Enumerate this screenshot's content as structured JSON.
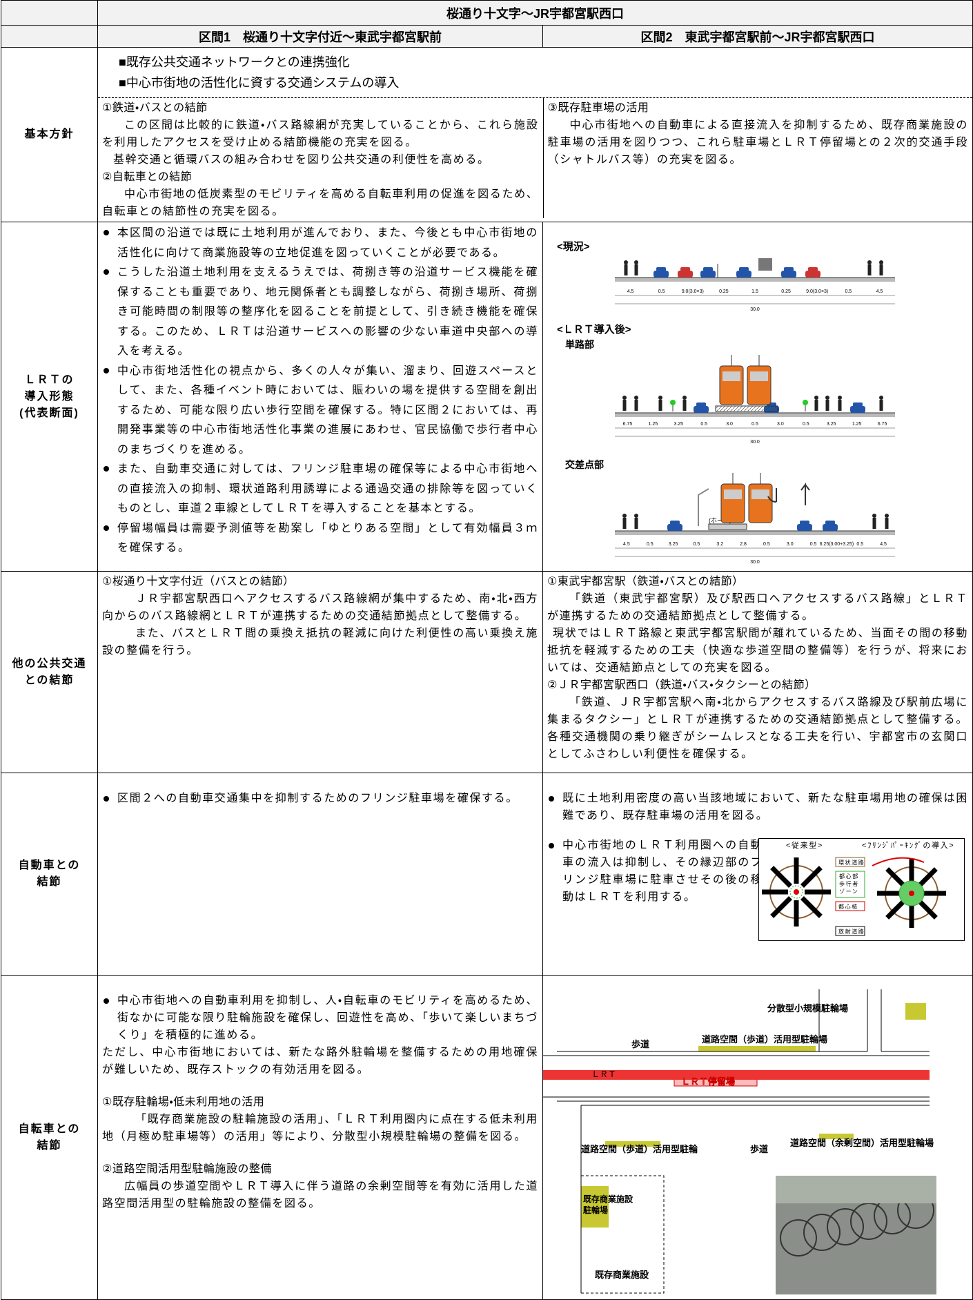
{
  "header": {
    "title": "桜通り十文字～JR宇都宮駅西口",
    "section1": "区間1　桜通り十文字付近～東武宇都宮駅前",
    "section2": "区間2　東武宇都宮駅前～JR宇都宮駅西口"
  },
  "basic_policy": {
    "label": "基本方針",
    "headings": [
      "■既存公共交通ネットワークとの連携強化",
      "■中心市街地の活性化に資する交通システムの導入"
    ],
    "section1": [
      {
        "title": "①鉄道・バスとの結節",
        "paragraphs": [
          "この区間は比較的に鉄道・バス路線網が充実していることから、これら施設を利用したアクセスを受け止める結節機能の充実を図る。",
          "基幹交通と循環バスの組み合わせを図り公共交通の利便性を高める。"
        ]
      },
      {
        "title": "②自転車との結節",
        "paragraphs": [
          "中心市街地の低炭素型のモビリティを高める自転車利用の促進を図るため、自転車との結節性の充実を図る。"
        ]
      }
    ],
    "section2": [
      {
        "title": "③既存駐車場の活用",
        "paragraphs": [
          "中心市街地への自動車による直接流入を抑制するため、既存商業施設の駐車場の活用を図りつつ、これら駐車場とＬＲＴ停留場との２次的交通手段（シャトルバス等）の充実を図る。"
        ]
      }
    ]
  },
  "lrt_form": {
    "label": [
      "ＬＲＴの",
      "導入形態",
      "(代表断面)"
    ],
    "bullets": [
      "本区間の沿道では既に土地利用が進んでおり、また、今後とも中心市街地の活性化に向けて商業施設等の立地促進を図っていくことが必要である。",
      "こうした沿道土地利用を支えるうえでは、荷捌き等の沿道サービス機能を確保することも重要であり、地元関係者とも調整しながら、荷捌き場所、荷捌き可能時間の制限等の整序化を図ることを前提として、引き続き機能を確保する。このため、ＬＲＴは沿道サービスへの影響の少ない車道中央部への導入を考える。",
      "中心市街地活性化の視点から、多くの人々が集い、溜まり、回遊スペースとして、また、各種イベント時においては、賑わいの場を提供する空間を創出するため、可能な限り広い歩行空間を確保する。特に区間２においては、再開発事業等の中心市街地活性化事業の進展にあわせ、官民協働で歩行者中心のまちづくりを進める。",
      "また、自動車交通に対しては、フリンジ駐車場の確保等による中心市街地への直接流入の抑制、環状道路利用誘導による通過交通の排除等を図っていくものとし、車道２車線としてＬＲＴを導入することを基本とする。",
      "停留場幅員は需要予測値等を勘案し「ゆとりある空間」として有効幅員３ｍを確保する。"
    ],
    "diagram": {
      "current": "<現況>",
      "after": "<ＬＲＴ導入後>",
      "midblock": "単路部",
      "intersection": "交差点部",
      "platform": "(ホーム)",
      "sections": [
        {
          "dims": [
            "4.5",
            "0.5",
            "9.0(3.0×3)",
            "0.25",
            "1.5",
            "0.25",
            "9.0(3.0×3)",
            "0.5",
            "4.5"
          ],
          "total": "30.0"
        },
        {
          "dims": [
            "6.75",
            "1.25",
            "3.25",
            "0.5",
            "3.0",
            "0.5",
            "3.0",
            "0.5",
            "3.25",
            "1.25",
            "6.75"
          ],
          "total": "30.0"
        },
        {
          "dims": [
            "4.5",
            "0.5",
            "3.25",
            "0.5",
            "3.2",
            "2.8",
            "0.5",
            "3.0",
            "0.5",
            "6.25(3.00+3.25)",
            "0.5",
            "4.5"
          ],
          "total": "30.0"
        }
      ]
    }
  },
  "public_transport": {
    "label": [
      "他の公共交通",
      "との結節"
    ],
    "section1": [
      {
        "title": "①桜通り十文字付近（バスとの結節）",
        "paragraphs": [
          "ＪＲ宇都宮駅西口へアクセスするバス路線網が集中するため、南・北・西方向からのバス路線網とＬＲＴが連携するための交通結節拠点として整備する。",
          "また、バスとＬＲＴ間の乗換え抵抗の軽減に向けた利便性の高い乗換え施設の整備を行う。"
        ]
      }
    ],
    "section2": [
      {
        "title": "①東武宇都宮駅（鉄道・バスとの結節）",
        "paragraphs": [
          "「鉄道（東武宇都宮駅）及び駅西口へアクセスするバス路線」とＬＲＴが連携するための交通結節拠点として整備する。",
          "現状ではＬＲＴ路線と東武宇都宮駅間が離れているため、当面その間の移動抵抗を軽減するための工夫（快適な歩道空間の整備等）を行うが、将来においては、交通結節点としての充実を図る。"
        ]
      },
      {
        "title": "②ＪＲ宇都宮駅西口（鉄道・バス・タクシーとの結節）",
        "paragraphs": [
          "「鉄道、ＪＲ宇都宮駅へ南・北からアクセスするバス路線及び駅前広場に集まるタクシー」とＬＲＴが連携するための交通結節拠点として整備する。各種交通機関の乗り継ぎがシームレスとなる工夫を行い、宇都宮市の玄関口としてふさわしい利便性を確保する。"
        ]
      }
    ]
  },
  "car": {
    "label": [
      "自動車との",
      "結節"
    ],
    "section1": [
      "区間２への自動車交通集中を抑制するためのフリンジ駐車場を確保する。"
    ],
    "section2": [
      "既に土地利用密度の高い当該地域において、新たな駐車場用地の確保は困難であり、既存駐車場の活用を図る。",
      "中心市街地のＬＲＴ利用圏への自動車の流入は抑制し、その縁辺部のフリンジ駐車場に駐車させその後の移動はＬＲＴを利用する。"
    ],
    "diagram": {
      "conventional": "<従来型>",
      "fringe": "<ﾌﾘﾝｼﾞﾊﾟｰｷﾝｸﾞの導入>",
      "ring_road": "環状道路",
      "pedestrian_zone": [
        "都心部",
        "歩行者",
        "ゾーン"
      ],
      "core": "都心核",
      "radial_road": "放射道路"
    }
  },
  "bicycle": {
    "label": [
      "自転車との",
      "結節"
    ],
    "bullet": "中心市街地への自動車利用を抑制し、人・自転車のモビリティを高めるため、街なかに可能な限り駐輪施設を確保し、回遊性を高め、「歩いて楽しいまちづくり」を積極的に進める。",
    "note": "ただし、中心市街地においては、新たな路外駐輪場を整備するための用地確保が難しいため、既存ストックの有効活用を図る。",
    "items": [
      {
        "title": "①既存駐輪場・低未利用地の活用",
        "paragraphs": [
          "「既存商業施設の駐輪施設の活用」、「ＬＲＴ利用圏内に点在する低未利用地（月極め駐車場等）の活用」等により、分散型小規模駐輪場の整備を図る。"
        ]
      },
      {
        "title": "②道路空間活用型駐輪施設の整備",
        "paragraphs": [
          "広幅員の歩道空間やＬＲＴ導入に伴う道路の余剰空間等を有効に活用した道路空間活用型の駐輪施設の整備を図る。"
        ]
      }
    ],
    "map": {
      "small_parking": "分散型小規模駐輪場",
      "sidewalk_top": "歩道",
      "sidewalk_parking_top": "道路空間（歩道）活用型駐輪場",
      "lrt": "ＬＲＴ",
      "stop": "ＬＲＴ停留場",
      "sidewalk_parking_bottom": "道路空間（歩道）活用型駐輪",
      "sidewalk_bottom": "歩道",
      "surplus_parking": "道路空間（余剰空間）活用型駐輪場",
      "commercial_parking": [
        "既存商業施設",
        "駐輪場"
      ],
      "commercial": "既存商業施設"
    }
  }
}
